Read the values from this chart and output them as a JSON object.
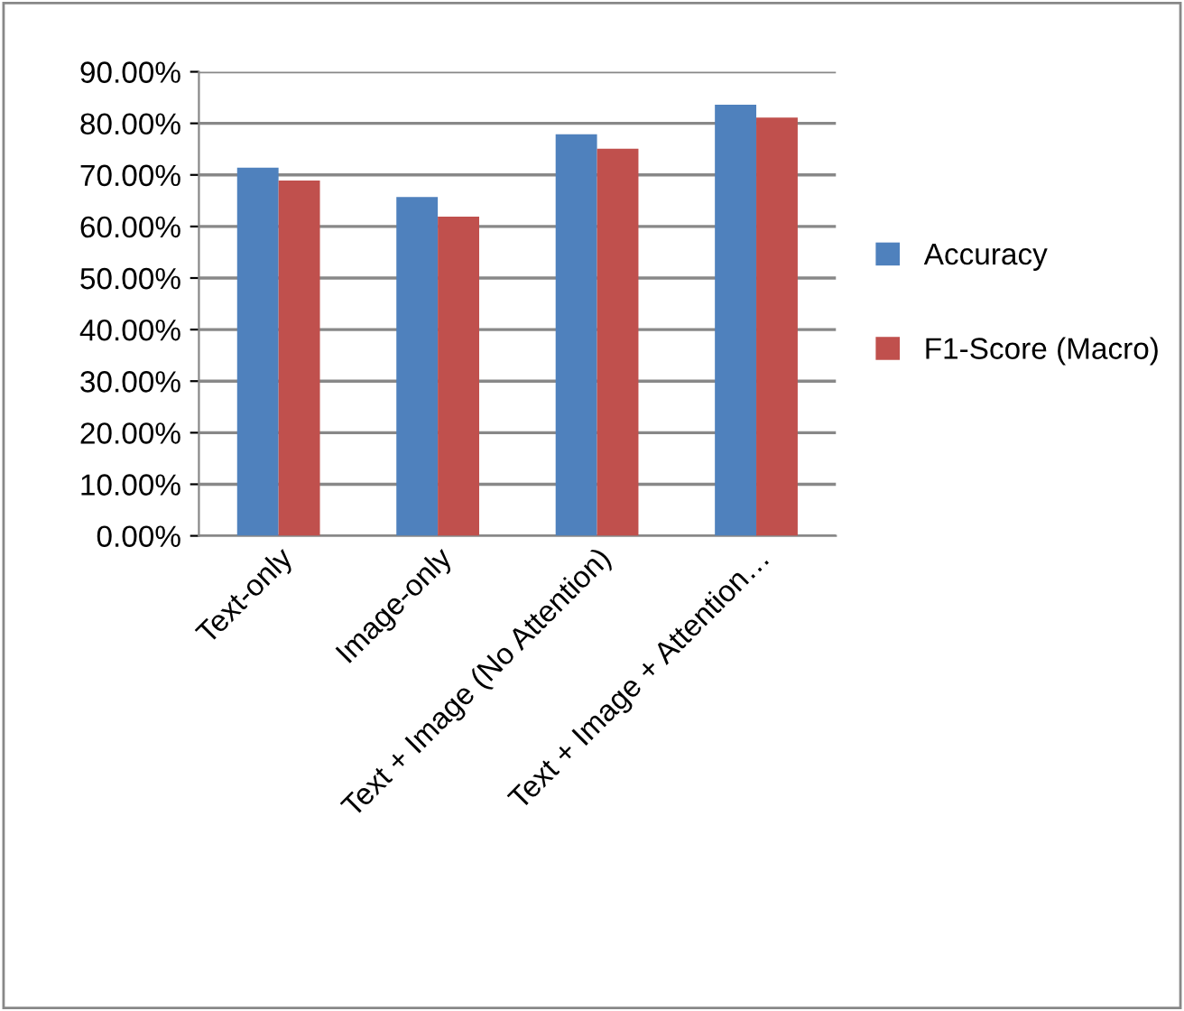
{
  "chart_data": {
    "type": "bar",
    "categories": [
      "Text-only",
      "Image-only",
      "Text + Image (No Attention)",
      "Text + Image + Attention…"
    ],
    "series": [
      {
        "name": "Accuracy",
        "color": "#4f81bd",
        "values": [
          71.4,
          65.7,
          77.9,
          83.6
        ]
      },
      {
        "name": "F1-Score (Macro)",
        "color": "#c0504d",
        "values": [
          68.9,
          61.9,
          75.1,
          81.1
        ]
      }
    ],
    "ylim": [
      0,
      90
    ],
    "yticks": [
      {
        "value": 0,
        "label": "0.00%"
      },
      {
        "value": 10,
        "label": "10.00%"
      },
      {
        "value": 20,
        "label": "20.00%"
      },
      {
        "value": 30,
        "label": "30.00%"
      },
      {
        "value": 40,
        "label": "40.00%"
      },
      {
        "value": 50,
        "label": "50.00%"
      },
      {
        "value": 60,
        "label": "60.00%"
      },
      {
        "value": 70,
        "label": "70.00%"
      },
      {
        "value": 80,
        "label": "80.00%"
      },
      {
        "value": 90,
        "label": "90.00%"
      }
    ],
    "grid": "y",
    "legend": "right"
  }
}
